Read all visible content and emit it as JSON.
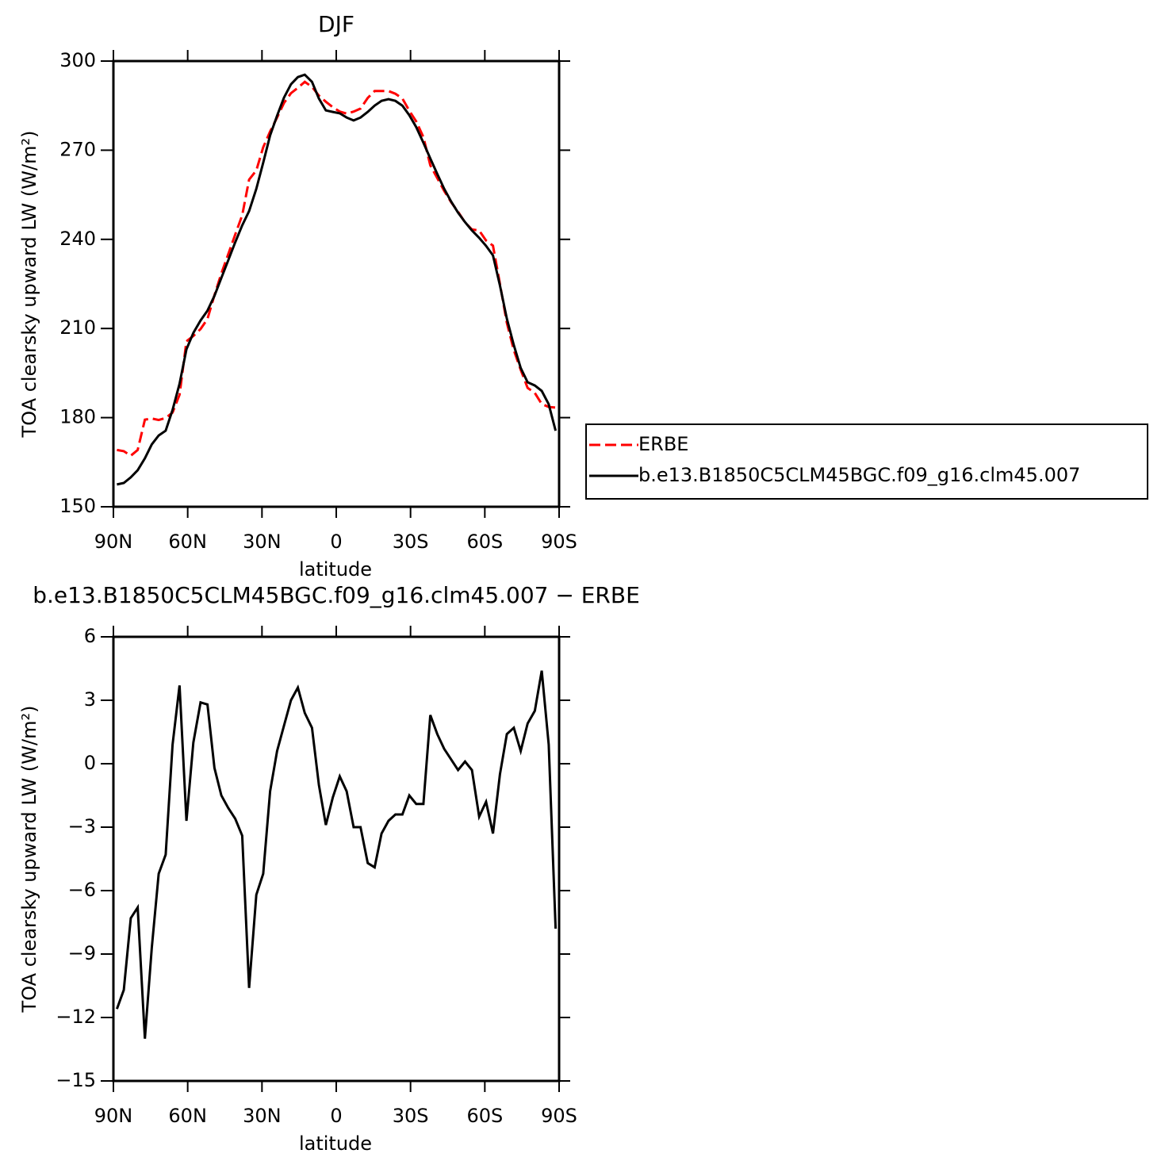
{
  "chart_data": [
    {
      "type": "line",
      "title": "DJF",
      "xlabel": "latitude",
      "ylabel": "TOA clearsky upward LW (W/m²)",
      "x": [
        88.6,
        85.8,
        83.0,
        80.2,
        77.3,
        74.5,
        71.7,
        68.9,
        66.1,
        63.3,
        60.5,
        57.7,
        54.8,
        52.0,
        49.2,
        46.4,
        43.6,
        40.8,
        38.0,
        35.2,
        32.3,
        29.5,
        26.7,
        23.9,
        21.1,
        18.3,
        15.5,
        12.7,
        9.8,
        7.0,
        4.2,
        1.4,
        -1.4,
        -4.2,
        -7.0,
        -9.8,
        -12.7,
        -15.5,
        -18.3,
        -21.1,
        -23.9,
        -26.7,
        -29.5,
        -32.3,
        -35.2,
        -38.0,
        -40.8,
        -43.6,
        -46.4,
        -49.2,
        -52.0,
        -54.8,
        -57.7,
        -60.5,
        -63.3,
        -66.1,
        -68.9,
        -71.7,
        -74.5,
        -77.3,
        -80.2,
        -83.0,
        -85.8,
        -88.6
      ],
      "xlim": [
        90,
        -90
      ],
      "xticks": [
        {
          "value": 90,
          "label": "90N"
        },
        {
          "value": 60,
          "label": "60N"
        },
        {
          "value": 30,
          "label": "30N"
        },
        0,
        {
          "value": -30,
          "label": "30S"
        },
        {
          "value": -60,
          "label": "60S"
        },
        {
          "value": -90,
          "label": "90S"
        }
      ],
      "ylim": [
        150,
        300
      ],
      "yticks": [
        150,
        180,
        210,
        240,
        270,
        300
      ],
      "legend": "right",
      "series": [
        {
          "name": "ERBE",
          "color": "#ff0000",
          "style": "dashed",
          "values": [
            169.1,
            168.7,
            167.2,
            169.1,
            179.3,
            179.7,
            179.2,
            179.9,
            181.7,
            187.7,
            205.7,
            207.5,
            209.8,
            213.2,
            221.2,
            228.5,
            235.1,
            241.6,
            248.1,
            260.1,
            263.2,
            271.0,
            276.3,
            281.0,
            285.9,
            289.2,
            291.0,
            293.0,
            291.3,
            288.4,
            286.3,
            284.5,
            283.0,
            282.3,
            283.0,
            284.0,
            287.6,
            289.9,
            289.9,
            289.9,
            289.0,
            287.4,
            283.3,
            279.7,
            274.4,
            264.9,
            260.6,
            256.3,
            252.5,
            249.3,
            245.7,
            243.3,
            243.0,
            239.6,
            237.9,
            225.0,
            211.9,
            202.7,
            196.1,
            190.0,
            188.3,
            184.6,
            183.6,
            183.4
          ]
        },
        {
          "name": "b.e13.B1850C5CLM45BGC.f09_g16.clm45.007",
          "color": "#000000",
          "style": "solid",
          "values": [
            157.5,
            158.0,
            159.9,
            162.3,
            166.3,
            171.0,
            174.0,
            175.6,
            182.6,
            191.4,
            203.0,
            208.5,
            212.7,
            216.0,
            221.0,
            227.0,
            233.0,
            239.0,
            244.7,
            249.5,
            257.0,
            265.8,
            275.0,
            281.6,
            287.7,
            292.2,
            294.6,
            295.4,
            293.0,
            287.4,
            283.4,
            282.9,
            282.4,
            281.0,
            280.0,
            281.0,
            282.9,
            285.0,
            286.6,
            287.2,
            286.6,
            285.0,
            281.8,
            277.8,
            272.5,
            267.2,
            262.0,
            257.0,
            252.7,
            249.0,
            245.8,
            243.0,
            240.5,
            237.8,
            234.6,
            224.5,
            213.3,
            204.4,
            196.7,
            191.9,
            190.8,
            189.0,
            184.5,
            175.6
          ]
        }
      ]
    },
    {
      "type": "line",
      "title": "b.e13.B1850C5CLM45BGC.f09_g16.clm45.007 − ERBE",
      "xlabel": "latitude",
      "ylabel": "TOA clearsky upward LW (W/m²)",
      "x": [
        88.6,
        85.8,
        83.0,
        80.2,
        77.3,
        74.5,
        71.7,
        68.9,
        66.1,
        63.3,
        60.5,
        57.7,
        54.8,
        52.0,
        49.2,
        46.4,
        43.6,
        40.8,
        38.0,
        35.2,
        32.3,
        29.5,
        26.7,
        23.9,
        21.1,
        18.3,
        15.5,
        12.7,
        9.8,
        7.0,
        4.2,
        1.4,
        -1.4,
        -4.2,
        -7.0,
        -9.8,
        -12.7,
        -15.5,
        -18.3,
        -21.1,
        -23.9,
        -26.7,
        -29.5,
        -32.3,
        -35.2,
        -38.0,
        -40.8,
        -43.6,
        -46.4,
        -49.2,
        -52.0,
        -54.8,
        -57.7,
        -60.5,
        -63.3,
        -66.1,
        -68.9,
        -71.7,
        -74.5,
        -77.3,
        -80.2,
        -83.0,
        -85.8,
        -88.6
      ],
      "xlim": [
        90,
        -90
      ],
      "xticks": [
        {
          "value": 90,
          "label": "90N"
        },
        {
          "value": 60,
          "label": "60N"
        },
        {
          "value": 30,
          "label": "30N"
        },
        0,
        {
          "value": -30,
          "label": "30S"
        },
        {
          "value": -60,
          "label": "60S"
        },
        {
          "value": -90,
          "label": "90S"
        }
      ],
      "ylim": [
        -15,
        6
      ],
      "yticks": [
        {
          "value": -15,
          "label": "−15"
        },
        {
          "value": -12,
          "label": "−12"
        },
        {
          "value": -9,
          "label": "−9"
        },
        {
          "value": -6,
          "label": "−6"
        },
        {
          "value": -3,
          "label": "−3"
        },
        0,
        3,
        6
      ],
      "color": "#000000",
      "values": [
        -11.6,
        -10.7,
        -7.3,
        -6.8,
        -13.0,
        -8.7,
        -5.2,
        -4.3,
        0.9,
        3.7,
        -2.7,
        1.0,
        2.9,
        2.8,
        -0.2,
        -1.5,
        -2.1,
        -2.6,
        -3.4,
        -10.6,
        -6.2,
        -5.2,
        -1.3,
        0.6,
        1.8,
        3.0,
        3.6,
        2.4,
        1.7,
        -1.0,
        -2.9,
        -1.6,
        -0.6,
        -1.3,
        -3.0,
        -3.0,
        -4.7,
        -4.9,
        -3.3,
        -2.7,
        -2.4,
        -2.4,
        -1.5,
        -1.9,
        -1.9,
        2.3,
        1.4,
        0.7,
        0.2,
        -0.3,
        0.1,
        -0.3,
        -2.5,
        -1.8,
        -3.3,
        -0.5,
        1.4,
        1.7,
        0.6,
        1.9,
        2.5,
        4.4,
        0.9,
        -7.8
      ]
    }
  ]
}
